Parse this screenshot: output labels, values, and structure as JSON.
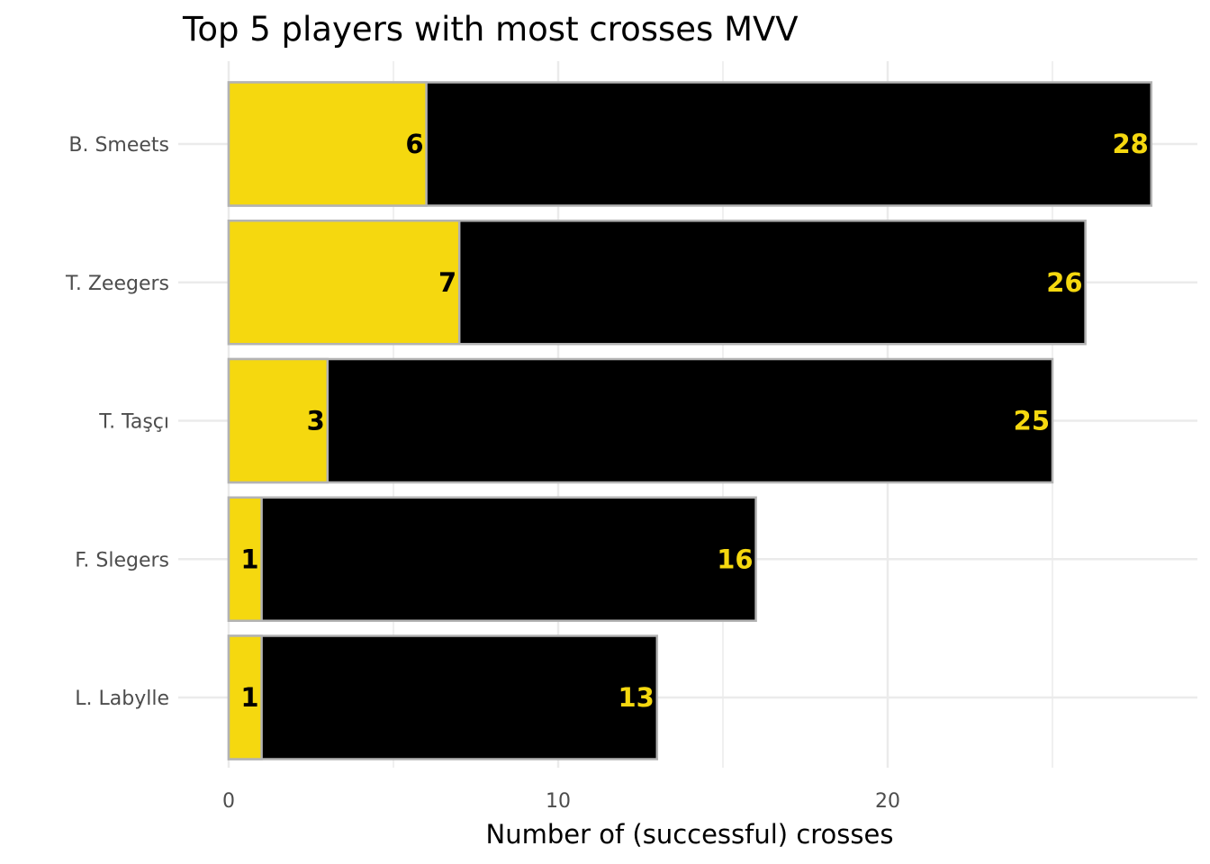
{
  "chart_data": {
    "type": "bar",
    "orientation": "horizontal",
    "layout": "overlapping",
    "title": "Top 5 players with most crosses MVV",
    "xlabel": "Number of (successful) crosses",
    "ylabel": "",
    "xlim": [
      0,
      29.5
    ],
    "x_ticks": [
      0,
      10,
      20
    ],
    "grid": true,
    "categories": [
      "B. Smeets",
      "T. Zeegers",
      "T. Taşçı",
      "F. Slegers",
      "L. Labylle"
    ],
    "series": [
      {
        "values": [
          28,
          26,
          25,
          16,
          13
        ],
        "color": "#000000",
        "label_color": "#f5d80f"
      },
      {
        "values": [
          6,
          7,
          3,
          1,
          1
        ],
        "color": "#f5d80f",
        "label_color": "#000000"
      }
    ],
    "bar_border_color": "#b3b3b3",
    "grid_color": "#ebebeb"
  }
}
